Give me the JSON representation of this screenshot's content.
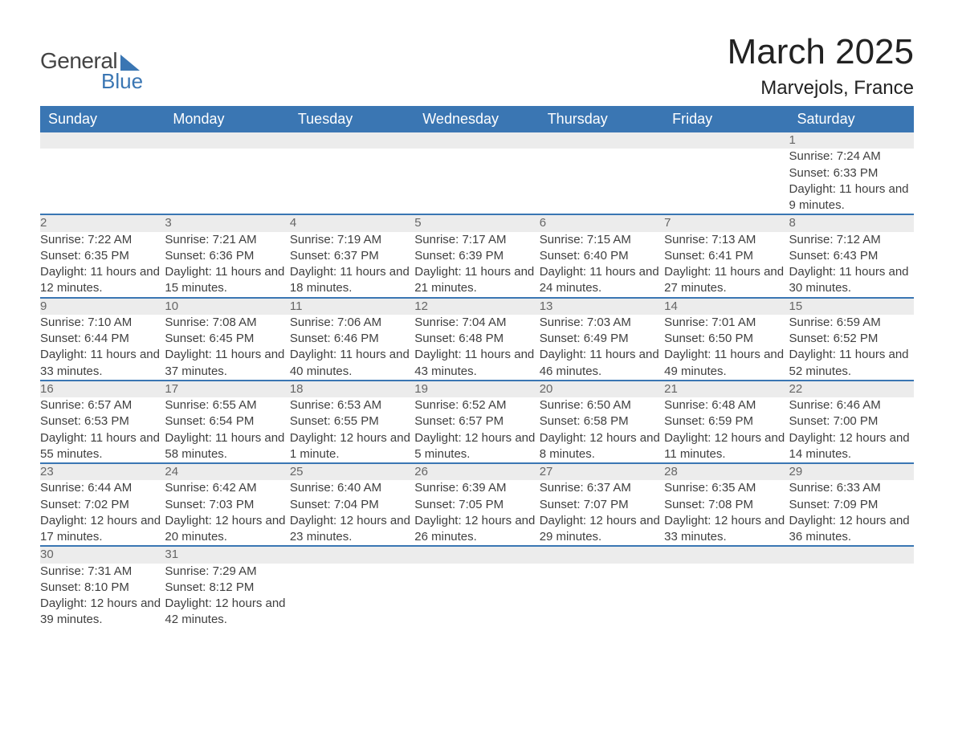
{
  "logo": {
    "text1": "General",
    "text2": "Blue"
  },
  "title": "March 2025",
  "location": "Marvejols, France",
  "colors": {
    "header_bg": "#3a76b3",
    "header_text": "#ffffff",
    "daynum_bg": "#ececec",
    "row_border": "#3a76b3",
    "body_text": "#3f3f3f",
    "daynum_text": "#666666",
    "page_bg": "#ffffff"
  },
  "weekdays": [
    "Sunday",
    "Monday",
    "Tuesday",
    "Wednesday",
    "Thursday",
    "Friday",
    "Saturday"
  ],
  "weeks": [
    {
      "days": [
        null,
        null,
        null,
        null,
        null,
        null,
        {
          "n": "1",
          "sunrise": "7:24 AM",
          "sunset": "6:33 PM",
          "daylight": "11 hours and 9 minutes."
        }
      ]
    },
    {
      "days": [
        {
          "n": "2",
          "sunrise": "7:22 AM",
          "sunset": "6:35 PM",
          "daylight": "11 hours and 12 minutes."
        },
        {
          "n": "3",
          "sunrise": "7:21 AM",
          "sunset": "6:36 PM",
          "daylight": "11 hours and 15 minutes."
        },
        {
          "n": "4",
          "sunrise": "7:19 AM",
          "sunset": "6:37 PM",
          "daylight": "11 hours and 18 minutes."
        },
        {
          "n": "5",
          "sunrise": "7:17 AM",
          "sunset": "6:39 PM",
          "daylight": "11 hours and 21 minutes."
        },
        {
          "n": "6",
          "sunrise": "7:15 AM",
          "sunset": "6:40 PM",
          "daylight": "11 hours and 24 minutes."
        },
        {
          "n": "7",
          "sunrise": "7:13 AM",
          "sunset": "6:41 PM",
          "daylight": "11 hours and 27 minutes."
        },
        {
          "n": "8",
          "sunrise": "7:12 AM",
          "sunset": "6:43 PM",
          "daylight": "11 hours and 30 minutes."
        }
      ]
    },
    {
      "days": [
        {
          "n": "9",
          "sunrise": "7:10 AM",
          "sunset": "6:44 PM",
          "daylight": "11 hours and 33 minutes."
        },
        {
          "n": "10",
          "sunrise": "7:08 AM",
          "sunset": "6:45 PM",
          "daylight": "11 hours and 37 minutes."
        },
        {
          "n": "11",
          "sunrise": "7:06 AM",
          "sunset": "6:46 PM",
          "daylight": "11 hours and 40 minutes."
        },
        {
          "n": "12",
          "sunrise": "7:04 AM",
          "sunset": "6:48 PM",
          "daylight": "11 hours and 43 minutes."
        },
        {
          "n": "13",
          "sunrise": "7:03 AM",
          "sunset": "6:49 PM",
          "daylight": "11 hours and 46 minutes."
        },
        {
          "n": "14",
          "sunrise": "7:01 AM",
          "sunset": "6:50 PM",
          "daylight": "11 hours and 49 minutes."
        },
        {
          "n": "15",
          "sunrise": "6:59 AM",
          "sunset": "6:52 PM",
          "daylight": "11 hours and 52 minutes."
        }
      ]
    },
    {
      "days": [
        {
          "n": "16",
          "sunrise": "6:57 AM",
          "sunset": "6:53 PM",
          "daylight": "11 hours and 55 minutes."
        },
        {
          "n": "17",
          "sunrise": "6:55 AM",
          "sunset": "6:54 PM",
          "daylight": "11 hours and 58 minutes."
        },
        {
          "n": "18",
          "sunrise": "6:53 AM",
          "sunset": "6:55 PM",
          "daylight": "12 hours and 1 minute."
        },
        {
          "n": "19",
          "sunrise": "6:52 AM",
          "sunset": "6:57 PM",
          "daylight": "12 hours and 5 minutes."
        },
        {
          "n": "20",
          "sunrise": "6:50 AM",
          "sunset": "6:58 PM",
          "daylight": "12 hours and 8 minutes."
        },
        {
          "n": "21",
          "sunrise": "6:48 AM",
          "sunset": "6:59 PM",
          "daylight": "12 hours and 11 minutes."
        },
        {
          "n": "22",
          "sunrise": "6:46 AM",
          "sunset": "7:00 PM",
          "daylight": "12 hours and 14 minutes."
        }
      ]
    },
    {
      "days": [
        {
          "n": "23",
          "sunrise": "6:44 AM",
          "sunset": "7:02 PM",
          "daylight": "12 hours and 17 minutes."
        },
        {
          "n": "24",
          "sunrise": "6:42 AM",
          "sunset": "7:03 PM",
          "daylight": "12 hours and 20 minutes."
        },
        {
          "n": "25",
          "sunrise": "6:40 AM",
          "sunset": "7:04 PM",
          "daylight": "12 hours and 23 minutes."
        },
        {
          "n": "26",
          "sunrise": "6:39 AM",
          "sunset": "7:05 PM",
          "daylight": "12 hours and 26 minutes."
        },
        {
          "n": "27",
          "sunrise": "6:37 AM",
          "sunset": "7:07 PM",
          "daylight": "12 hours and 29 minutes."
        },
        {
          "n": "28",
          "sunrise": "6:35 AM",
          "sunset": "7:08 PM",
          "daylight": "12 hours and 33 minutes."
        },
        {
          "n": "29",
          "sunrise": "6:33 AM",
          "sunset": "7:09 PM",
          "daylight": "12 hours and 36 minutes."
        }
      ]
    },
    {
      "days": [
        {
          "n": "30",
          "sunrise": "7:31 AM",
          "sunset": "8:10 PM",
          "daylight": "12 hours and 39 minutes."
        },
        {
          "n": "31",
          "sunrise": "7:29 AM",
          "sunset": "8:12 PM",
          "daylight": "12 hours and 42 minutes."
        },
        null,
        null,
        null,
        null,
        null
      ]
    }
  ],
  "labels": {
    "sunrise": "Sunrise: ",
    "sunset": "Sunset: ",
    "daylight": "Daylight: "
  }
}
